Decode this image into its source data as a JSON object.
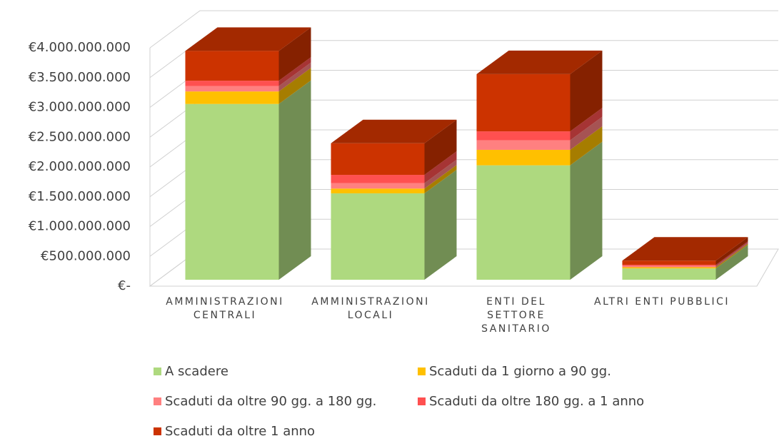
{
  "chart_data": {
    "type": "bar3d_stacked",
    "categories": [
      "AMMINISTRAZIONI CENTRALI",
      "AMMINISTRAZIONI LOCALI",
      "ENTI DEL SETTORE SANITARIO",
      "ALTRI ENTI PUBBLICI"
    ],
    "series": [
      {
        "name": "A scadere",
        "color": "#aed97f",
        "values": [
          2950000000,
          1450000000,
          1920000000,
          190000000
        ]
      },
      {
        "name": "Scaduti da 1 giorno a 90 gg.",
        "color": "#ffc000",
        "values": [
          210000000,
          80000000,
          260000000,
          20000000
        ]
      },
      {
        "name": "Scaduti da oltre 90 gg. a 180 gg.",
        "color": "#ff8080",
        "values": [
          90000000,
          90000000,
          160000000,
          20000000
        ]
      },
      {
        "name": "Scaduti da oltre 180 gg. a 1 anno",
        "color": "#ff5050",
        "values": [
          90000000,
          140000000,
          150000000,
          20000000
        ]
      },
      {
        "name": "Scaduti da oltre 1 anno",
        "color": "#cc3300",
        "values": [
          500000000,
          530000000,
          960000000,
          70000000
        ]
      }
    ],
    "ylim": [
      0,
      4000000000
    ],
    "yticks": [
      {
        "value": 0,
        "label": "€-"
      },
      {
        "value": 500000000,
        "label": "€500.000.000"
      },
      {
        "value": 1000000000,
        "label": "€1.000.000.000"
      },
      {
        "value": 1500000000,
        "label": "€1.500.000.000"
      },
      {
        "value": 2000000000,
        "label": "€2.000.000.000"
      },
      {
        "value": 2500000000,
        "label": "€2.500.000.000"
      },
      {
        "value": 3000000000,
        "label": "€3.000.000.000"
      },
      {
        "value": 3500000000,
        "label": "€3.500.000.000"
      },
      {
        "value": 4000000000,
        "label": "€4.000.000.000"
      }
    ],
    "grid": true,
    "legend": "bottom"
  }
}
